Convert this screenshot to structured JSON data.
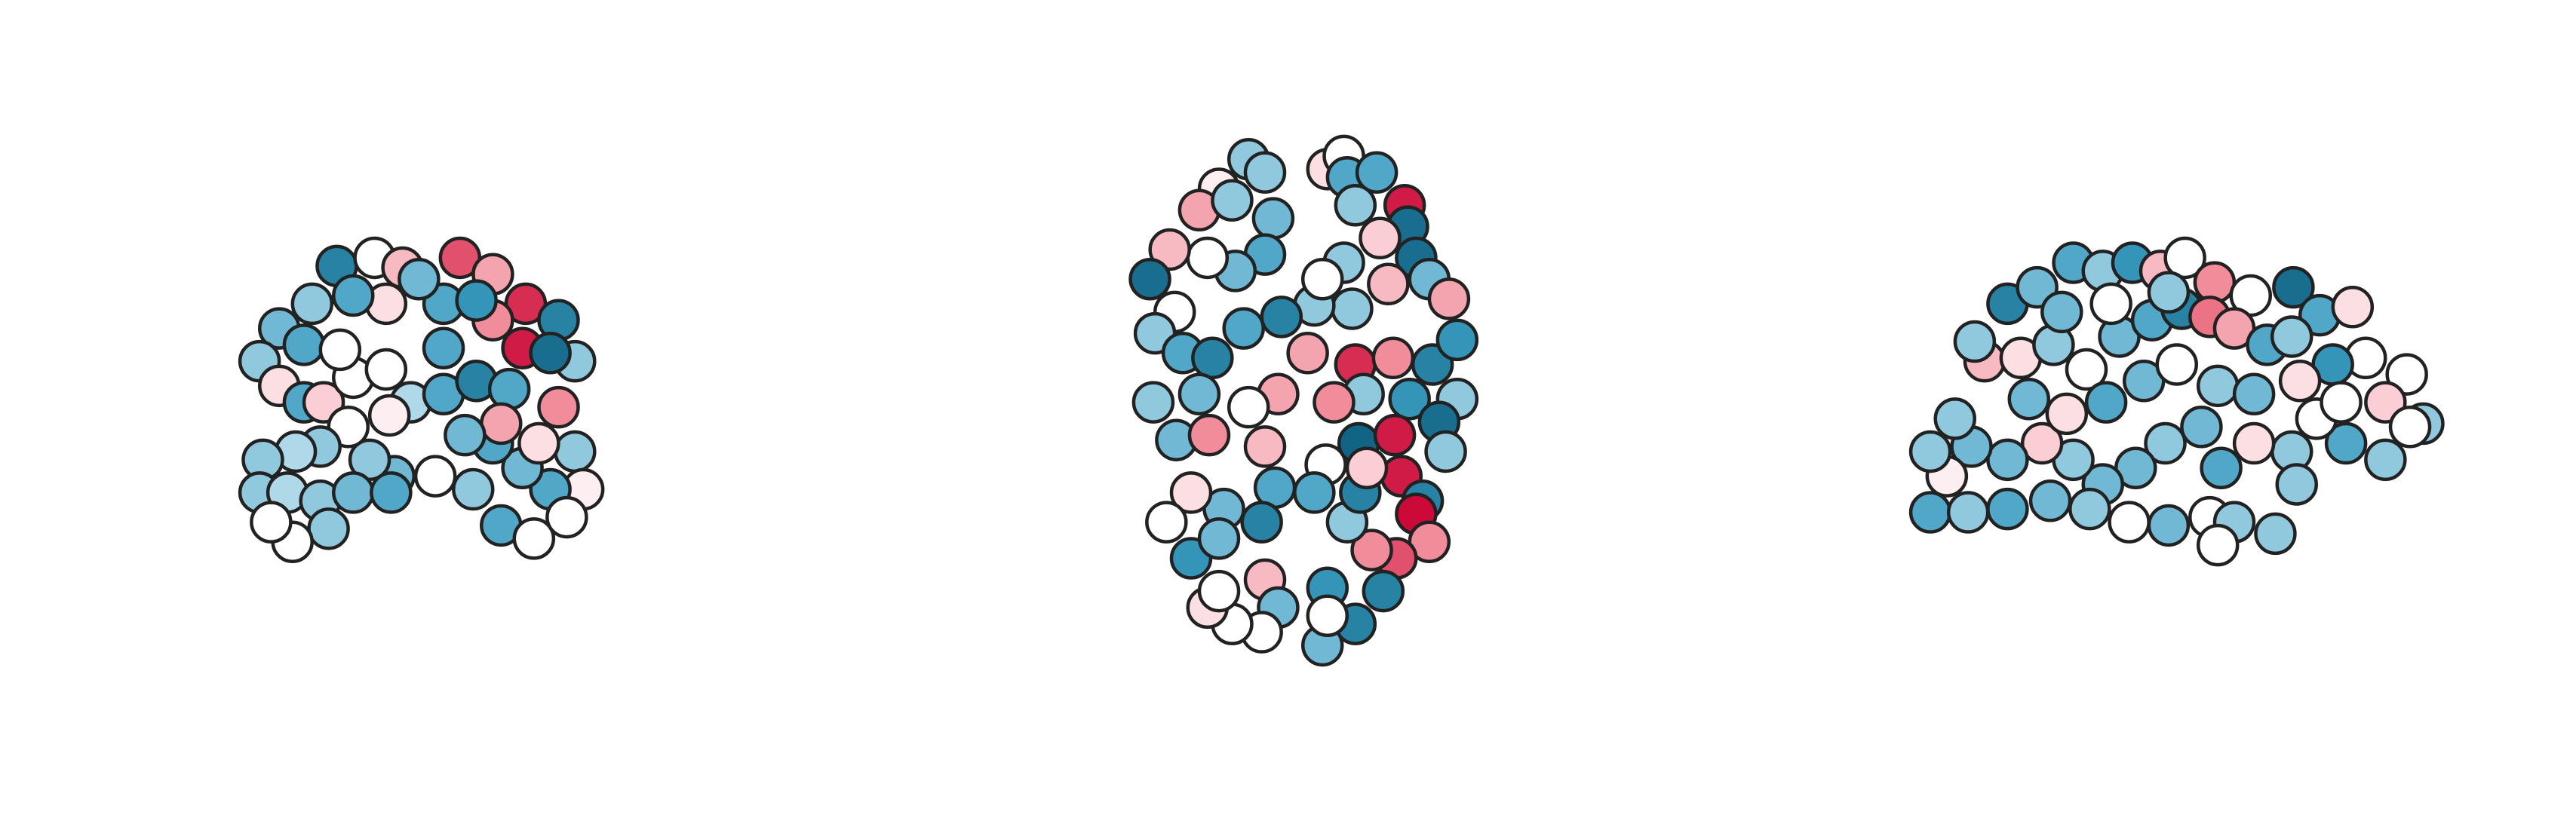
{
  "chart_data": [
    {
      "type": "scatter",
      "xlim": [
        0,
        1568
      ],
      "ylim": [
        500,
        0
      ],
      "vlim": [
        -1,
        1
      ],
      "cmap": [
        "#0b5a7a",
        "#3a9cc0",
        "#a6d4e5",
        "#ffffff",
        "#f9c9cf",
        "#ef7e8e",
        "#cc0a3a"
      ],
      "edgecolor": "#222222",
      "x": [
        205,
        228,
        245,
        280,
        300,
        320,
        340,
        350,
        318,
        335,
        300,
        270,
        255,
        235,
        215,
        190,
        170,
        158,
        170,
        185,
        197,
        215,
        235,
        250,
        270,
        290,
        310,
        340,
        350,
        355,
        335,
        318,
        300,
        305,
        283,
        265,
        240,
        225,
        212,
        195,
        180,
        160,
        158,
        175,
        195,
        215,
        238,
        288,
        305,
        325,
        345,
        200,
        178,
        165,
        270,
        290,
        185,
        207,
        328,
        237
      ],
      "y": [
        162,
        157,
        163,
        157,
        167,
        185,
        195,
        220,
        212,
        215,
        195,
        185,
        170,
        185,
        180,
        185,
        200,
        220,
        235,
        245,
        245,
        230,
        225,
        245,
        240,
        232,
        237,
        248,
        275,
        298,
        298,
        285,
        270,
        258,
        265,
        290,
        290,
        280,
        260,
        272,
        275,
        280,
        300,
        300,
        305,
        300,
        300,
        298,
        320,
        328,
        315,
        322,
        330,
        318,
        212,
        183,
        210,
        213,
        270,
        253
      ],
      "values": [
        -0.8,
        0,
        0.4,
        0.8,
        0.5,
        0.9,
        -0.8,
        -0.4,
        0.95,
        -0.9,
        0.6,
        -0.6,
        -0.5,
        0.2,
        -0.6,
        -0.4,
        -0.5,
        -0.4,
        0.2,
        -0.6,
        0.3,
        0,
        0,
        -0.3,
        -0.6,
        -0.8,
        -0.6,
        0.6,
        -0.4,
        0.1,
        -0.6,
        -0.5,
        -0.6,
        0.5,
        -0.5,
        0,
        -0.5,
        -0.4,
        0,
        -0.4,
        -0.3,
        -0.4,
        -0.4,
        -0.3,
        -0.4,
        -0.5,
        -0.6,
        -0.4,
        -0.6,
        0,
        0,
        -0.4,
        0,
        0,
        -0.6,
        -0.7,
        -0.6,
        0,
        0.2,
        0.1
      ]
    },
    {
      "type": "scatter",
      "xlim": [
        0,
        1568
      ],
      "ylim": [
        500,
        0
      ],
      "vlim": [
        -1,
        1
      ],
      "cmap": [
        "#0b5a7a",
        "#3a9cc0",
        "#a6d4e5",
        "#ffffff",
        "#f9c9cf",
        "#ef7e8e",
        "#cc0a3a"
      ],
      "edgecolor": "#222222",
      "x": [
        760,
        770,
        742,
        730,
        750,
        775,
        808,
        818,
        820,
        838,
        855,
        857,
        825,
        840,
        862,
        870,
        882,
        845,
        823,
        800,
        818,
        805,
        770,
        752,
        735,
        712,
        700,
        715,
        703,
        720,
        738,
        757,
        780,
        796,
        825,
        848,
        872,
        887,
        887,
        858,
        830,
        812,
        778,
        760,
        730,
        702,
        716,
        736,
        770,
        807,
        827,
        849,
        876,
        880,
        853,
        866,
        862,
        870,
        850,
        835,
        820,
        800,
        776,
        768,
        745,
        725,
        710,
        725,
        742,
        770,
        808,
        842,
        825,
        805,
        778,
        768,
        750,
        735,
        742,
        808,
        828,
        832
      ],
      "y": [
        97,
        105,
        115,
        128,
        122,
        133,
        103,
        95,
        108,
        105,
        125,
        138,
        125,
        145,
        157,
        170,
        182,
        173,
        188,
        186,
        160,
        170,
        155,
        165,
        157,
        152,
        170,
        190,
        203,
        215,
        218,
        200,
        193,
        215,
        222,
        218,
        222,
        207,
        243,
        243,
        240,
        245,
        240,
        248,
        240,
        245,
        268,
        265,
        272,
        283,
        270,
        265,
        257,
        275,
        290,
        305,
        313,
        330,
        340,
        335,
        318,
        300,
        297,
        318,
        310,
        300,
        318,
        340,
        328,
        353,
        358,
        360,
        380,
        393,
        370,
        385,
        380,
        370,
        360,
        375,
        300,
        285
      ],
      "values": [
        -0.4,
        -0.4,
        0.1,
        0.5,
        -0.4,
        -0.5,
        0.2,
        0,
        -0.6,
        -0.6,
        0.95,
        -0.9,
        -0.4,
        0.3,
        -0.9,
        -0.5,
        0.5,
        0.4,
        -0.4,
        -0.4,
        -0.4,
        0,
        -0.6,
        -0.5,
        0,
        0.4,
        -0.9,
        0,
        -0.4,
        -0.6,
        -0.8,
        -0.6,
        -0.8,
        0.5,
        0.9,
        0.6,
        -0.8,
        -0.7,
        -0.4,
        -0.7,
        -0.4,
        0.6,
        0.5,
        0,
        -0.5,
        -0.4,
        -0.5,
        0.6,
        0.4,
        0,
        -0.95,
        0.95,
        -0.9,
        -0.4,
        0.95,
        -0.8,
        1,
        0.6,
        0.8,
        0.6,
        -0.4,
        -0.6,
        -0.6,
        -0.8,
        -0.5,
        0.2,
        0,
        -0.7,
        -0.5,
        0.4,
        -0.7,
        -0.8,
        -0.8,
        -0.5,
        -0.5,
        0,
        0,
        0.2,
        0,
        0,
        -0.8,
        0.3
      ]
    },
    {
      "type": "scatter",
      "xlim": [
        0,
        1568
      ],
      "ylim": [
        500,
        0
      ],
      "vlim": [
        -1,
        1
      ],
      "cmap": [
        "#0b5a7a",
        "#3a9cc0",
        "#a6d4e5",
        "#ffffff",
        "#f9c9cf",
        "#ef7e8e",
        "#cc0a3a"
      ],
      "edgecolor": "#222222",
      "x": [
        1222,
        1240,
        1262,
        1280,
        1298,
        1315,
        1330,
        1348,
        1370,
        1396,
        1412,
        1432,
        1440,
        1465,
        1452,
        1475,
        1467,
        1452,
        1428,
        1410,
        1395,
        1372,
        1352,
        1340,
        1318,
        1300,
        1280,
        1262,
        1243,
        1222,
        1200,
        1185,
        1175,
        1198,
        1222,
        1248,
        1272,
        1296,
        1320,
        1345,
        1360,
        1385,
        1398,
        1350,
        1175,
        1190,
        1208,
        1230,
        1250,
        1270,
        1290,
        1310,
        1328,
        1345,
        1360,
        1380,
        1395,
        1420,
        1202,
        1235,
        1258,
        1282,
        1305,
        1325,
        1350,
        1372,
        1400,
        1425,
        1255,
        1285,
        1320
      ],
      "y": [
        185,
        175,
        160,
        165,
        160,
        165,
        157,
        172,
        180,
        175,
        192,
        187,
        218,
        228,
        245,
        258,
        260,
        280,
        270,
        255,
        275,
        270,
        285,
        260,
        270,
        285,
        295,
        280,
        270,
        280,
        272,
        290,
        312,
        312,
        310,
        305,
        310,
        318,
        320,
        315,
        318,
        325,
        295,
        332,
        275,
        255,
        220,
        218,
        210,
        225,
        205,
        195,
        188,
        193,
        200,
        210,
        205,
        222,
        208,
        243,
        252,
        245,
        232,
        222,
        235,
        240,
        232,
        245,
        190,
        185,
        178
      ],
      "values": [
        -0.8,
        -0.5,
        -0.6,
        -0.4,
        -0.7,
        0.4,
        0,
        0.6,
        0,
        -0.9,
        -0.6,
        0.2,
        0,
        0,
        0.3,
        -0.4,
        0,
        -0.4,
        -0.6,
        0,
        -0.4,
        0.2,
        -0.6,
        -0.5,
        -0.4,
        -0.5,
        -0.5,
        -0.4,
        0.3,
        -0.5,
        -0.5,
        0.1,
        -0.6,
        -0.4,
        -0.6,
        -0.5,
        -0.4,
        0,
        -0.5,
        0,
        -0.4,
        -0.4,
        -0.4,
        0,
        -0.4,
        -0.4,
        0.4,
        0.2,
        -0.4,
        0,
        -0.5,
        -0.6,
        -0.8,
        0.7,
        0.5,
        -0.6,
        -0.4,
        -0.7,
        -0.4,
        -0.5,
        0.2,
        -0.6,
        -0.5,
        0,
        -0.4,
        -0.5,
        0.2,
        0,
        -0.5,
        0,
        -0.4
      ]
    }
  ]
}
